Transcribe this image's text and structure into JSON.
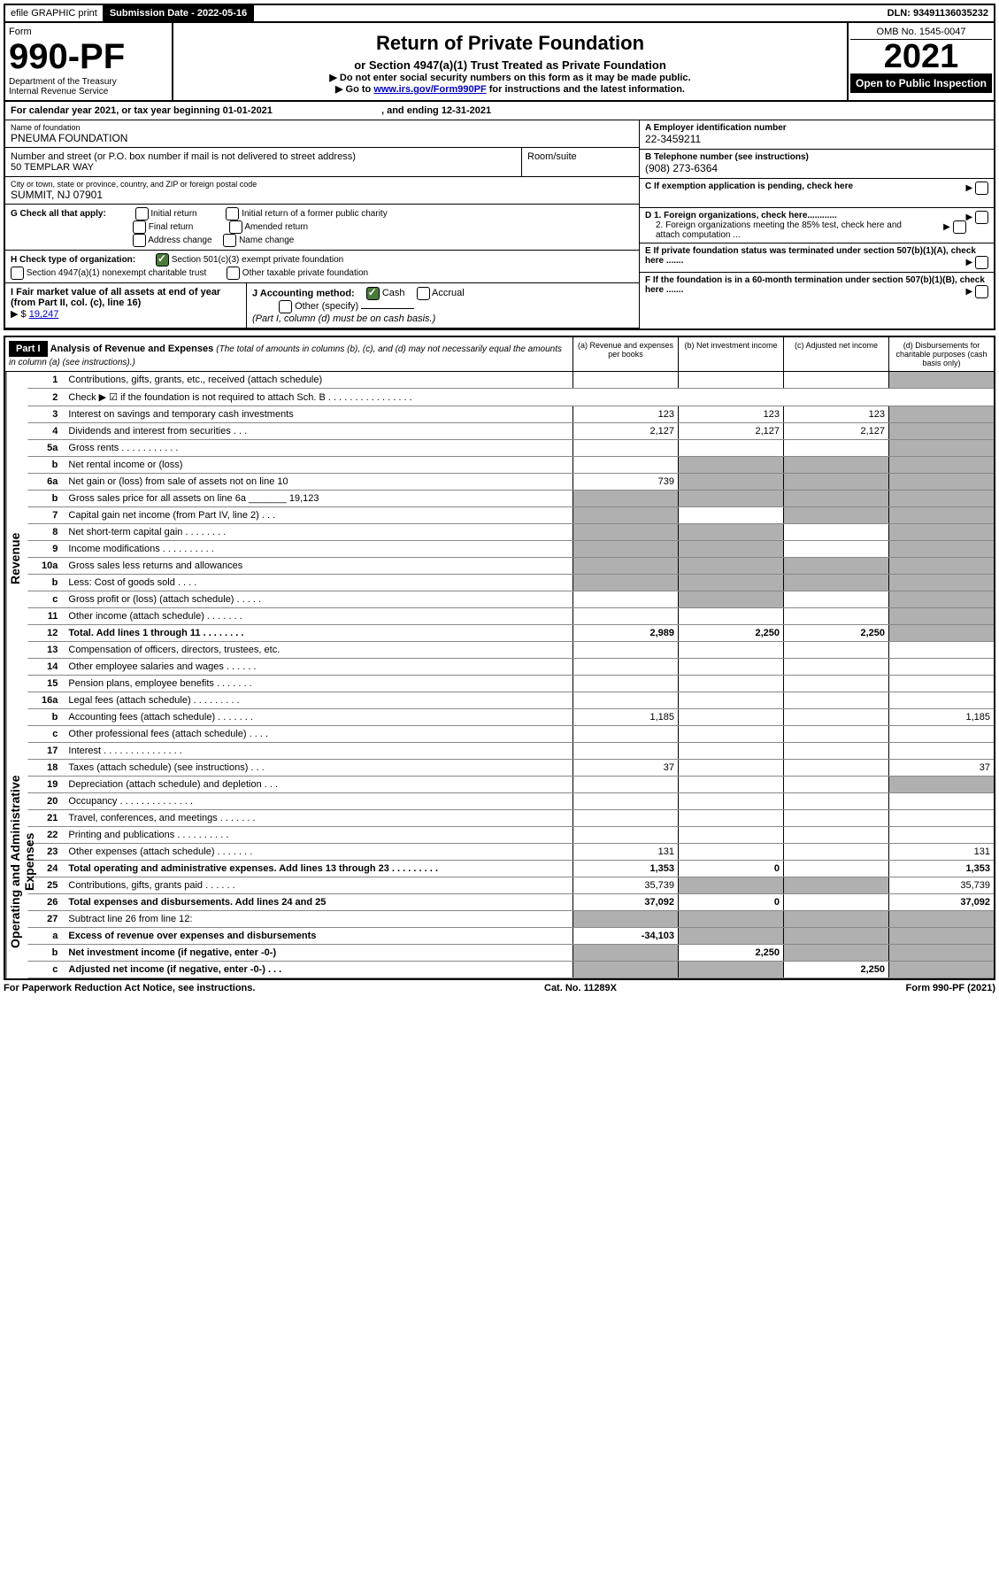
{
  "top": {
    "efile": "efile GRAPHIC print",
    "sub_lbl": "Submission Date - 2022-05-16",
    "dln": "DLN: 93491136035232"
  },
  "header": {
    "form_word": "Form",
    "form_no": "990-PF",
    "dept": "Department of the Treasury",
    "irs": "Internal Revenue Service",
    "title": "Return of Private Foundation",
    "subtitle": "or Section 4947(a)(1) Trust Treated as Private Foundation",
    "note1": "▶ Do not enter social security numbers on this form as it may be made public.",
    "note2_pre": "▶ Go to ",
    "note2_link": "www.irs.gov/Form990PF",
    "note2_post": " for instructions and the latest information.",
    "omb": "OMB No. 1545-0047",
    "year": "2021",
    "open": "Open to Public Inspection"
  },
  "cal": {
    "text_a": "For calendar year 2021, or tax year beginning 01-01-2021",
    "text_b": ", and ending 12-31-2021"
  },
  "entity": {
    "name_lbl": "Name of foundation",
    "name": "PNEUMA FOUNDATION",
    "addr_lbl": "Number and street (or P.O. box number if mail is not delivered to street address)",
    "addr": "50 TEMPLAR WAY",
    "room_lbl": "Room/suite",
    "city_lbl": "City or town, state or province, country, and ZIP or foreign postal code",
    "city": "SUMMIT, NJ  07901",
    "ein_lbl": "A Employer identification number",
    "ein": "22-3459211",
    "tel_lbl": "B Telephone number (see instructions)",
    "tel": "(908) 273-6364",
    "c": "C If exemption application is pending, check here",
    "d1": "D 1. Foreign organizations, check here............",
    "d2": "2. Foreign organizations meeting the 85% test, check here and attach computation ...",
    "e": "E  If private foundation status was terminated under section 507(b)(1)(A), check here .......",
    "f": "F  If the foundation is in a 60-month termination under section 507(b)(1)(B), check here .......",
    "g_lbl": "G Check all that apply:",
    "g_opts": [
      "Initial return",
      "Final return",
      "Address change",
      "Initial return of a former public charity",
      "Amended return",
      "Name change"
    ],
    "h_lbl": "H Check type of organization:",
    "h1": "Section 501(c)(3) exempt private foundation",
    "h2": "Section 4947(a)(1) nonexempt charitable trust",
    "h3": "Other taxable private foundation",
    "i_lbl": "I Fair market value of all assets at end of year (from Part II, col. (c), line 16)",
    "i_val": "19,247",
    "j_lbl": "J Accounting method:",
    "j_cash": "Cash",
    "j_accrual": "Accrual",
    "j_other": "Other (specify)",
    "j_note": "(Part I, column (d) must be on cash basis.)"
  },
  "part1": {
    "label": "Part I",
    "title": "Analysis of Revenue and Expenses",
    "title_note": "(The total of amounts in columns (b), (c), and (d) may not necessarily equal the amounts in column (a) (see instructions).)",
    "col_a": "(a)   Revenue and expenses per books",
    "col_b": "(b)   Net investment income",
    "col_c": "(c)   Adjusted net income",
    "col_d": "(d)   Disbursements for charitable purposes (cash basis only)"
  },
  "side": {
    "rev": "Revenue",
    "exp": "Operating and Administrative Expenses"
  },
  "rows": [
    {
      "n": "1",
      "t": "Contributions, gifts, grants, etc., received (attach schedule)",
      "a": "",
      "b": "",
      "c": "",
      "d": "",
      "d_grey": true
    },
    {
      "n": "2",
      "t": "Check ▶ ☑ if the foundation is not required to attach Sch. B   .  .  .  .  .  .  .  .  .  .  .  .  .  .  .  .",
      "nocols": true
    },
    {
      "n": "3",
      "t": "Interest on savings and temporary cash investments",
      "a": "123",
      "b": "123",
      "c": "123",
      "d": "",
      "d_grey": true
    },
    {
      "n": "4",
      "t": "Dividends and interest from securities    .   .   .",
      "a": "2,127",
      "b": "2,127",
      "c": "2,127",
      "d": "",
      "d_grey": true
    },
    {
      "n": "5a",
      "t": "Gross rents    .   .   .   .   .   .   .   .   .   .   .",
      "a": "",
      "b": "",
      "c": "",
      "d": "",
      "d_grey": true
    },
    {
      "n": "b",
      "t": "Net rental income or (loss)  ",
      "a": "",
      "b": "",
      "c": "",
      "d": "",
      "bcd_grey": true,
      "d_grey": true
    },
    {
      "n": "6a",
      "t": "Net gain or (loss) from sale of assets not on line 10",
      "a": "739",
      "b": "",
      "c": "",
      "d": "",
      "bcd_grey": true,
      "d_grey": true
    },
    {
      "n": "b",
      "t": "Gross sales price for all assets on line 6a _______ 19,123",
      "a": "",
      "b": "",
      "c": "",
      "d": "",
      "all_grey": true
    },
    {
      "n": "7",
      "t": "Capital gain net income (from Part IV, line 2)   .   .   .",
      "a": "",
      "b": "",
      "c": "",
      "d": "",
      "a_grey": true,
      "cd_grey": true
    },
    {
      "n": "8",
      "t": "Net short-term capital gain  .   .   .   .   .   .   .   .",
      "a": "",
      "b": "",
      "c": "",
      "d": "",
      "ab_grey": true,
      "d_grey": true
    },
    {
      "n": "9",
      "t": "Income modifications  .   .   .   .   .   .   .   .   .   .",
      "a": "",
      "b": "",
      "c": "",
      "d": "",
      "ab_grey": true,
      "d_grey": true
    },
    {
      "n": "10a",
      "t": "Gross sales less returns and allowances",
      "a": "",
      "b": "",
      "c": "",
      "d": "",
      "all_grey": true
    },
    {
      "n": "b",
      "t": "Less: Cost of goods sold    .   .   .   .",
      "a": "",
      "b": "",
      "c": "",
      "d": "",
      "all_grey": true
    },
    {
      "n": "c",
      "t": "Gross profit or (loss) (attach schedule)    .   .   .   .   .",
      "a": "",
      "b": "",
      "c": "",
      "d": "",
      "b_grey": true,
      "d_grey": true
    },
    {
      "n": "11",
      "t": "Other income (attach schedule)    .   .   .   .   .   .   .",
      "a": "",
      "b": "",
      "c": "",
      "d": "",
      "d_grey": true
    },
    {
      "n": "12",
      "t": "Total. Add lines 1 through 11   .   .   .   .   .   .   .   .",
      "a": "2,989",
      "b": "2,250",
      "c": "2,250",
      "d": "",
      "bold": true,
      "d_grey": true
    },
    {
      "n": "13",
      "t": "Compensation of officers, directors, trustees, etc.",
      "a": "",
      "b": "",
      "c": "",
      "d": ""
    },
    {
      "n": "14",
      "t": "Other employee salaries and wages   .   .   .   .   .   .",
      "a": "",
      "b": "",
      "c": "",
      "d": ""
    },
    {
      "n": "15",
      "t": "Pension plans, employee benefits  .   .   .   .   .   .   .",
      "a": "",
      "b": "",
      "c": "",
      "d": ""
    },
    {
      "n": "16a",
      "t": "Legal fees (attach schedule)  .   .   .   .   .   .   .   .   .",
      "a": "",
      "b": "",
      "c": "",
      "d": ""
    },
    {
      "n": "b",
      "t": "Accounting fees (attach schedule)  .   .   .   .   .   .   .",
      "a": "1,185",
      "b": "",
      "c": "",
      "d": "1,185"
    },
    {
      "n": "c",
      "t": "Other professional fees (attach schedule)    .   .   .   .",
      "a": "",
      "b": "",
      "c": "",
      "d": ""
    },
    {
      "n": "17",
      "t": "Interest  .   .   .   .   .   .   .   .   .   .   .   .   .   .   .",
      "a": "",
      "b": "",
      "c": "",
      "d": ""
    },
    {
      "n": "18",
      "t": "Taxes (attach schedule) (see instructions)    .   .   .",
      "a": "37",
      "b": "",
      "c": "",
      "d": "37"
    },
    {
      "n": "19",
      "t": "Depreciation (attach schedule) and depletion    .   .   .",
      "a": "",
      "b": "",
      "c": "",
      "d": "",
      "d_grey": true
    },
    {
      "n": "20",
      "t": "Occupancy  .   .   .   .   .   .   .   .   .   .   .   .   .   .",
      "a": "",
      "b": "",
      "c": "",
      "d": ""
    },
    {
      "n": "21",
      "t": "Travel, conferences, and meetings  .   .   .   .   .   .   .",
      "a": "",
      "b": "",
      "c": "",
      "d": ""
    },
    {
      "n": "22",
      "t": "Printing and publications  .   .   .   .   .   .   .   .   .   .",
      "a": "",
      "b": "",
      "c": "",
      "d": ""
    },
    {
      "n": "23",
      "t": "Other expenses (attach schedule)  .   .   .   .   .   .   .",
      "a": "131",
      "b": "",
      "c": "",
      "d": "131"
    },
    {
      "n": "24",
      "t": "Total operating and administrative expenses. Add lines 13 through 23   .   .   .   .   .   .   .   .   .",
      "a": "1,353",
      "b": "0",
      "c": "",
      "d": "1,353",
      "bold": true
    },
    {
      "n": "25",
      "t": "Contributions, gifts, grants paid     .   .   .   .   .   .",
      "a": "35,739",
      "b": "",
      "c": "",
      "d": "35,739",
      "bc_grey": true
    },
    {
      "n": "26",
      "t": "Total expenses and disbursements. Add lines 24 and 25",
      "a": "37,092",
      "b": "0",
      "c": "",
      "d": "37,092",
      "bold": true
    },
    {
      "n": "27",
      "t": "Subtract line 26 from line 12:",
      "a": "",
      "b": "",
      "c": "",
      "d": "",
      "all_grey": true
    },
    {
      "n": "a",
      "t": "Excess of revenue over expenses and disbursements",
      "a": "-34,103",
      "b": "",
      "c": "",
      "d": "",
      "bold": true,
      "bcd_grey": true
    },
    {
      "n": "b",
      "t": "Net investment income (if negative, enter -0-)",
      "a": "",
      "b": "2,250",
      "c": "",
      "d": "",
      "bold": true,
      "a_grey": true,
      "cd_grey": true
    },
    {
      "n": "c",
      "t": "Adjusted net income (if negative, enter -0-)   .   .   .",
      "a": "",
      "b": "",
      "c": "2,250",
      "d": "",
      "bold": true,
      "ab_grey": true,
      "d_grey": true
    }
  ],
  "footer": {
    "left": "For Paperwork Reduction Act Notice, see instructions.",
    "mid": "Cat. No. 11289X",
    "right": "Form 990-PF (2021)"
  }
}
